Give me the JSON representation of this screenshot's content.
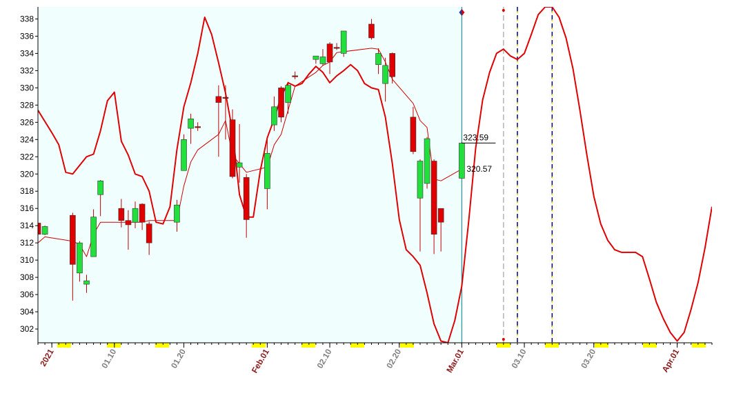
{
  "chart_data": {
    "type": "candlestick",
    "x": [
      "2020-12-30",
      "2020-12-31",
      "2021-01-04",
      "2021-01-05",
      "2021-01-06",
      "2021-01-07",
      "2021-01-08",
      "2021-01-11",
      "2021-01-12",
      "2021-01-13",
      "2021-01-14",
      "2021-01-15",
      "2021-01-19",
      "2021-01-20",
      "2021-01-21",
      "2021-01-22",
      "2021-01-25",
      "2021-01-26",
      "2021-01-27",
      "2021-01-28",
      "2021-01-29",
      "2021-02-01",
      "2021-02-02",
      "2021-02-03",
      "2021-02-04",
      "2021-02-05",
      "2021-02-08",
      "2021-02-09",
      "2021-02-10",
      "2021-02-11",
      "2021-02-12",
      "2021-02-16",
      "2021-02-17",
      "2021-02-18",
      "2021-02-19",
      "2021-02-22",
      "2021-02-23",
      "2021-02-24",
      "2021-02-25",
      "2021-02-26",
      "2021-03-01"
    ],
    "open": [
      314.3,
      313.0,
      315.2,
      308.5,
      307.2,
      310.4,
      317.6,
      316.0,
      314.6,
      314.4,
      316.5,
      314.2,
      314.4,
      320.4,
      325.3,
      325.5,
      329.0,
      328.9,
      326.3,
      320.8,
      319.6,
      318.3,
      325.7,
      330.0,
      328.3,
      331.4,
      333.3,
      332.8,
      335.1,
      334.7,
      334.0,
      337.4,
      332.7,
      330.5,
      334.0,
      326.6,
      317.2,
      318.9,
      321.5,
      316.0,
      319.5
    ],
    "high": [
      314.4,
      314.0,
      315.5,
      312.2,
      308.3,
      315.9,
      319.3,
      317.1,
      315.8,
      316.8,
      316.6,
      314.5,
      317.0,
      324.6,
      327.0,
      326.0,
      330.3,
      330.3,
      327.5,
      325.8,
      320.0,
      324.0,
      329.0,
      330.2,
      330.7,
      331.9,
      333.7,
      334.5,
      335.3,
      335.2,
      336.6,
      338.0,
      334.6,
      333.5,
      334.1,
      327.8,
      321.7,
      324.3,
      321.7,
      316.0,
      323.7
    ],
    "low": [
      312.7,
      312.9,
      305.3,
      307.5,
      306.2,
      310.4,
      315.1,
      313.8,
      311.2,
      313.7,
      313.5,
      310.6,
      313.3,
      320.4,
      323.5,
      325.0,
      322.0,
      324.0,
      319.5,
      319.0,
      312.6,
      315.9,
      325.0,
      326.0,
      327.0,
      331.0,
      332.8,
      332.6,
      331.6,
      334.4,
      333.6,
      335.6,
      331.6,
      328.4,
      330.5,
      322.3,
      311.0,
      318.3,
      310.7,
      311.0,
      319.5
    ],
    "close": [
      313.0,
      313.9,
      309.5,
      312.0,
      307.6,
      315.0,
      319.2,
      314.6,
      314.1,
      316.0,
      314.4,
      312.0,
      316.4,
      324.0,
      326.4,
      325.4,
      328.3,
      328.8,
      319.7,
      321.3,
      314.7,
      322.4,
      327.8,
      326.6,
      330.3,
      331.3,
      333.7,
      333.6,
      333.0,
      334.6,
      336.6,
      335.8,
      334.0,
      332.6,
      331.3,
      322.6,
      321.5,
      324.1,
      313.0,
      314.4,
      323.59
    ],
    "up_color": "#22e03c",
    "down_color": "#e00000",
    "wick_color": "#c00000",
    "overlays": [
      {
        "color": "#d00000",
        "width": 1,
        "values": [
          312.0,
          312.7,
          312.2,
          311.8,
          310.4,
          313.0,
          314.4,
          314.4,
          314.4,
          314.4,
          314.4,
          314.6,
          314.6,
          318.6,
          321.4,
          322.8,
          324.6,
          326.2,
          322.2,
          321.2,
          320.2,
          320.8,
          323.4,
          324.6,
          327.4,
          330.2,
          331.8,
          332.6,
          333.0,
          334.1,
          334.2,
          334.6,
          334.5,
          333.0,
          331.0,
          328.2,
          326.2,
          325.4,
          319.4,
          319.2,
          320.57
        ]
      },
      {
        "color": "#e00000",
        "width": 2,
        "x": [
          "2020-12-30",
          "2020-12-31",
          "2021-01-01",
          "2021-01-02",
          "2021-01-03",
          "2021-01-04",
          "2021-01-05",
          "2021-01-06",
          "2021-01-07",
          "2021-01-08",
          "2021-01-09",
          "2021-01-10",
          "2021-01-11",
          "2021-01-12",
          "2021-01-13",
          "2021-01-14",
          "2021-01-15",
          "2021-01-16",
          "2021-01-17",
          "2021-01-18",
          "2021-01-19",
          "2021-01-20",
          "2021-01-21",
          "2021-01-22",
          "2021-01-23",
          "2021-01-24",
          "2021-01-25",
          "2021-01-26",
          "2021-01-27",
          "2021-01-28",
          "2021-01-29",
          "2021-01-30",
          "2021-01-31",
          "2021-02-01",
          "2021-02-02",
          "2021-02-03",
          "2021-02-04",
          "2021-02-05",
          "2021-02-06",
          "2021-02-07",
          "2021-02-08",
          "2021-02-09",
          "2021-02-10",
          "2021-02-11",
          "2021-02-12",
          "2021-02-13",
          "2021-02-14",
          "2021-02-15",
          "2021-02-16",
          "2021-02-17",
          "2021-02-18",
          "2021-02-19",
          "2021-02-20",
          "2021-02-21",
          "2021-02-22",
          "2021-02-23",
          "2021-02-24",
          "2021-02-25",
          "2021-02-26",
          "2021-02-27",
          "2021-02-28",
          "2021-03-01",
          "2021-03-02",
          "2021-03-03",
          "2021-03-04",
          "2021-03-05",
          "2021-03-06",
          "2021-03-07",
          "2021-03-08",
          "2021-03-09",
          "2021-03-10",
          "2021-03-11",
          "2021-03-12",
          "2021-03-13",
          "2021-03-14",
          "2021-03-15",
          "2021-03-16",
          "2021-03-17",
          "2021-03-18",
          "2021-03-19",
          "2021-03-20",
          "2021-03-21",
          "2021-03-22",
          "2021-03-23",
          "2021-03-24",
          "2021-03-25",
          "2021-03-26",
          "2021-03-27",
          "2021-03-28",
          "2021-03-29",
          "2021-03-30",
          "2021-03-31",
          "2021-04-01",
          "2021-04-02",
          "2021-04-03",
          "2021-04-04",
          "2021-04-05",
          "2021-04-06"
        ],
        "values": [
          327.4,
          326.1,
          324.8,
          323.4,
          320.2,
          320.0,
          321.0,
          322.0,
          322.3,
          325.0,
          328.5,
          329.5,
          323.8,
          322.2,
          320.0,
          319.7,
          318.0,
          314.4,
          314.2,
          316.2,
          322.8,
          327.8,
          330.6,
          334.0,
          338.2,
          336.2,
          332.9,
          329.4,
          325.0,
          317.6,
          315.0,
          315.0,
          320.4,
          324.2,
          326.4,
          329.0,
          330.6,
          330.2,
          330.5,
          331.6,
          332.5,
          331.8,
          330.6,
          331.4,
          332.0,
          332.7,
          332.0,
          330.5,
          330.0,
          329.8,
          326.6,
          321.2,
          314.7,
          311.2,
          310.4,
          309.4,
          306.2,
          302.6,
          300.6,
          300.4,
          303.0,
          307.0,
          314.6,
          323.0,
          328.6,
          331.8,
          334.0,
          334.5,
          333.7,
          333.3,
          334.0,
          336.2,
          338.5,
          339.4,
          339.4,
          338.2,
          335.8,
          332.2,
          327.4,
          322.2,
          317.4,
          314.2,
          312.3,
          311.2,
          310.9,
          310.9,
          310.9,
          310.4,
          307.8,
          305.1,
          303.2,
          301.6,
          300.6,
          301.6,
          304.3,
          307.4,
          311.4,
          316.2
        ]
      }
    ],
    "vlines": [
      {
        "x": "2021-03-01",
        "color": "#00808c",
        "style": "solid"
      },
      {
        "x": "2021-03-07",
        "color": "#b4b4b4",
        "style": "dashed"
      },
      {
        "x": "2021-03-09",
        "color": "#000080",
        "style": "dashed"
      },
      {
        "x": "2021-03-14",
        "color": "#000080",
        "style": "dashed"
      }
    ],
    "history_shade": "#f0fefe",
    "xlim": [
      "2020-12-30",
      "2021-04-06"
    ],
    "xticks": [
      {
        "value": "2021-01-01",
        "label": "2021",
        "color": "#8b1a1a"
      },
      {
        "value": "2021-01-10",
        "label": "01.10",
        "color": "#808080"
      },
      {
        "value": "2021-01-20",
        "label": "01.20",
        "color": "#808080"
      },
      {
        "value": "2021-02-01",
        "label": "Feb.01",
        "color": "#8b1a1a"
      },
      {
        "value": "2021-02-10",
        "label": "02.10",
        "color": "#808080"
      },
      {
        "value": "2021-02-20",
        "label": "02.20",
        "color": "#808080"
      },
      {
        "value": "2021-03-01",
        "label": "Mar.01",
        "color": "#8b1a1a"
      },
      {
        "value": "2021-03-10",
        "label": "03.10",
        "color": "#808080"
      },
      {
        "value": "2021-03-20",
        "label": "03.20",
        "color": "#808080"
      },
      {
        "value": "2021-04-01",
        "label": "Apr.01",
        "color": "#8b1a1a"
      }
    ],
    "ylim": [
      300.4,
      339.4
    ],
    "yticks": [
      302,
      304,
      306,
      308,
      310,
      312,
      314,
      316,
      318,
      320,
      322,
      324,
      326,
      328,
      330,
      332,
      334,
      336,
      338
    ]
  }
}
